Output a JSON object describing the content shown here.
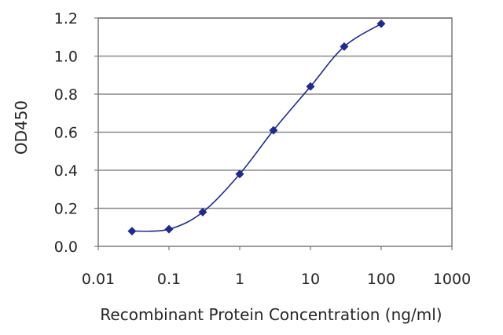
{
  "chart_data": {
    "type": "line",
    "title": "",
    "xlabel": "Recombinant Protein Concentration (ng/ml)",
    "ylabel": "OD450",
    "x_scale": "log",
    "xlim": [
      0.01,
      1000
    ],
    "ylim": [
      0.0,
      1.2
    ],
    "x_ticks": [
      0.01,
      0.1,
      1,
      10,
      100,
      1000
    ],
    "x_tick_labels": [
      "0.01",
      "0.1",
      "1",
      "10",
      "100",
      "1000"
    ],
    "y_ticks": [
      0.0,
      0.2,
      0.4,
      0.6,
      0.8,
      1.0,
      1.2
    ],
    "y_tick_labels": [
      "0.0",
      "0.2",
      "0.4",
      "0.6",
      "0.8",
      "1.0",
      "1.2"
    ],
    "grid": "horizontal",
    "legend": "none",
    "series": [
      {
        "x": [
          0.03,
          0.1,
          0.3,
          1,
          3,
          10,
          30,
          100
        ],
        "y": [
          0.08,
          0.09,
          0.18,
          0.38,
          0.61,
          0.84,
          1.05,
          1.17
        ],
        "color": "#1f2a8c"
      }
    ]
  }
}
